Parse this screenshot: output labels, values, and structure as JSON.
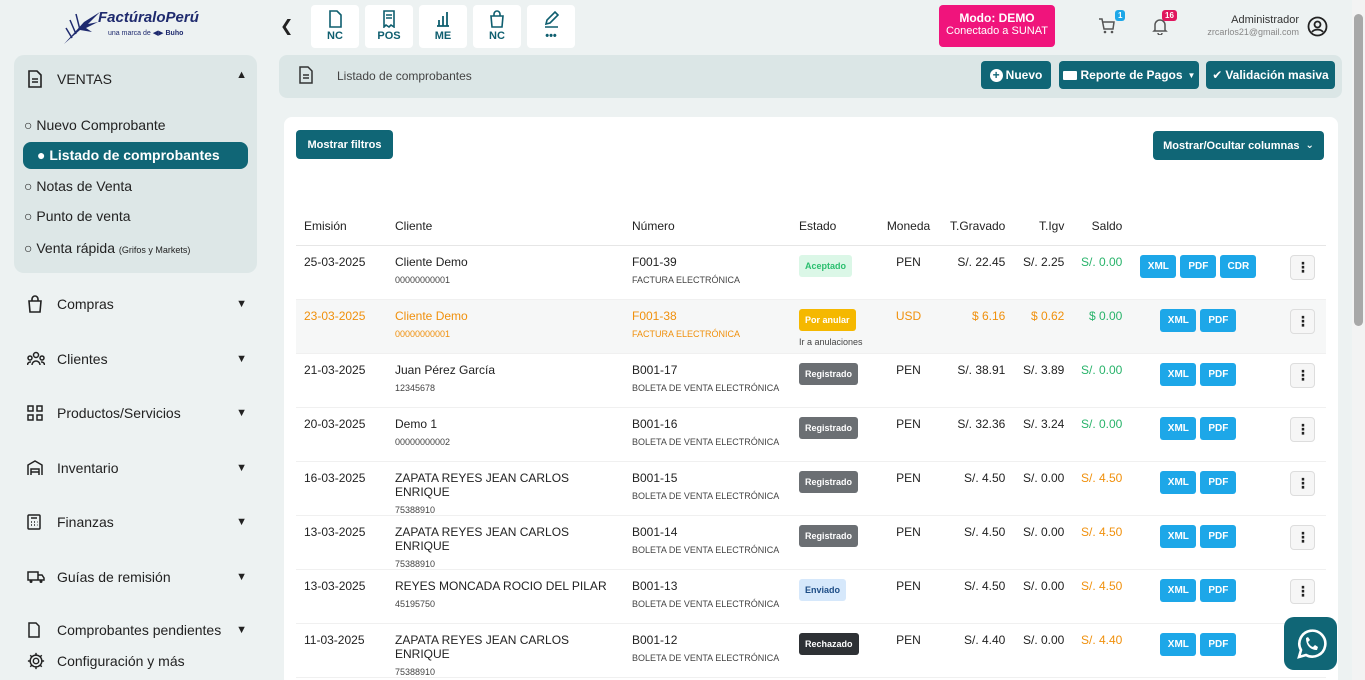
{
  "brand": {
    "name": "FactúraloPerú",
    "tagline": "una marca de",
    "parent": "Buho"
  },
  "toolbar": {
    "quick": [
      {
        "label": "NC",
        "icon": "document-icon"
      },
      {
        "label": "POS",
        "icon": "receipt-icon"
      },
      {
        "label": "ME",
        "icon": "chart-icon"
      },
      {
        "label": "NC",
        "icon": "shopping-bag-icon"
      },
      {
        "label": "•••",
        "icon": "edit-icon"
      }
    ]
  },
  "mode": {
    "line1": "Modo: DEMO",
    "line2": "Conectado a SUNAT"
  },
  "cart_count": "1",
  "notif_count": "16",
  "user": {
    "name": "Administrador",
    "email": "zrcarlos21@gmail.com"
  },
  "sidebar": {
    "ventas": {
      "label": "VENTAS",
      "items": [
        {
          "label": "Nuevo Comprobante"
        },
        {
          "label": "Listado de comprobantes"
        },
        {
          "label": "Notas de Venta"
        },
        {
          "label": "Punto de venta"
        },
        {
          "label": "Venta rápida",
          "small": "(Grifos y Markets)"
        }
      ]
    },
    "menu": [
      {
        "label": "Compras",
        "icon": "bag-icon"
      },
      {
        "label": "Clientes",
        "icon": "users-icon"
      },
      {
        "label": "Productos/Servicios",
        "icon": "grid-icon"
      },
      {
        "label": "Inventario",
        "icon": "warehouse-icon"
      },
      {
        "label": "Finanzas",
        "icon": "calculator-icon"
      },
      {
        "label": "Guías de remisión",
        "icon": "truck-icon"
      },
      {
        "label": "Comprobantes pendientes",
        "icon": "file-clock-icon"
      }
    ],
    "config": "Configuración y más"
  },
  "header": {
    "title": "Listado de comprobantes",
    "nuevo": "Nuevo",
    "reporte": "Reporte de Pagos",
    "validacion": "Validación masiva"
  },
  "filters_btn": "Mostrar filtros",
  "columns_btn": "Mostrar/Ocultar columnas",
  "table": {
    "headers": [
      "Emisión",
      "Cliente",
      "Número",
      "Estado",
      "Moneda",
      "T.Gravado",
      "T.Igv",
      "Saldo"
    ],
    "rows": [
      {
        "fecha": "25-03-2025",
        "cliente": "Cliente Demo",
        "doc": "00000000001",
        "numero": "F001-39",
        "tipo": "FACTURA ELECTRÓNICA",
        "estado": "Aceptado",
        "moneda": "PEN",
        "gravado": "S/. 22.45",
        "igv": "S/. 2.25",
        "saldo": "S/. 0.00",
        "cdr": "CDR"
      },
      {
        "fecha": "23-03-2025",
        "cliente": "Cliente Demo",
        "doc": "00000000001",
        "numero": "F001-38",
        "tipo": "FACTURA ELECTRÓNICA",
        "estado": "Por anular",
        "estado_sub": "Ir a anulaciones",
        "moneda": "USD",
        "gravado": "$ 6.16",
        "igv": "$ 0.62",
        "saldo": "$ 0.00"
      },
      {
        "fecha": "21-03-2025",
        "cliente": "Juan Pérez García",
        "doc": "12345678",
        "numero": "B001-17",
        "tipo": "BOLETA DE VENTA ELECTRÓNICA",
        "estado": "Registrado",
        "moneda": "PEN",
        "gravado": "S/. 38.91",
        "igv": "S/. 3.89",
        "saldo": "S/. 0.00"
      },
      {
        "fecha": "20-03-2025",
        "cliente": "Demo 1",
        "doc": "00000000002",
        "numero": "B001-16",
        "tipo": "BOLETA DE VENTA ELECTRÓNICA",
        "estado": "Registrado",
        "moneda": "PEN",
        "gravado": "S/. 32.36",
        "igv": "S/. 3.24",
        "saldo": "S/. 0.00"
      },
      {
        "fecha": "16-03-2025",
        "cliente": "ZAPATA REYES JEAN CARLOS ENRIQUE",
        "doc": "75388910",
        "numero": "B001-15",
        "tipo": "BOLETA DE VENTA ELECTRÓNICA",
        "estado": "Registrado",
        "moneda": "PEN",
        "gravado": "S/. 4.50",
        "igv": "S/. 0.00",
        "saldo": "S/. 4.50"
      },
      {
        "fecha": "13-03-2025",
        "cliente": "ZAPATA REYES JEAN CARLOS ENRIQUE",
        "doc": "75388910",
        "numero": "B001-14",
        "tipo": "BOLETA DE VENTA ELECTRÓNICA",
        "estado": "Registrado",
        "moneda": "PEN",
        "gravado": "S/. 4.50",
        "igv": "S/. 0.00",
        "saldo": "S/. 4.50"
      },
      {
        "fecha": "13-03-2025",
        "cliente": "REYES MONCADA ROCIO DEL PILAR",
        "doc": "45195750",
        "numero": "B001-13",
        "tipo": "BOLETA DE VENTA ELECTRÓNICA",
        "estado": "Enviado",
        "moneda": "PEN",
        "gravado": "S/. 4.50",
        "igv": "S/. 0.00",
        "saldo": "S/. 4.50"
      },
      {
        "fecha": "11-03-2025",
        "cliente": "ZAPATA REYES JEAN CARLOS ENRIQUE",
        "doc": "75388910",
        "numero": "B001-12",
        "tipo": "BOLETA DE VENTA ELECTRÓNICA",
        "estado": "Rechazado",
        "moneda": "PEN",
        "gravado": "S/. 4.40",
        "igv": "S/. 0.00",
        "saldo": "S/. 4.40"
      }
    ],
    "xml": "XML",
    "pdf": "PDF"
  }
}
